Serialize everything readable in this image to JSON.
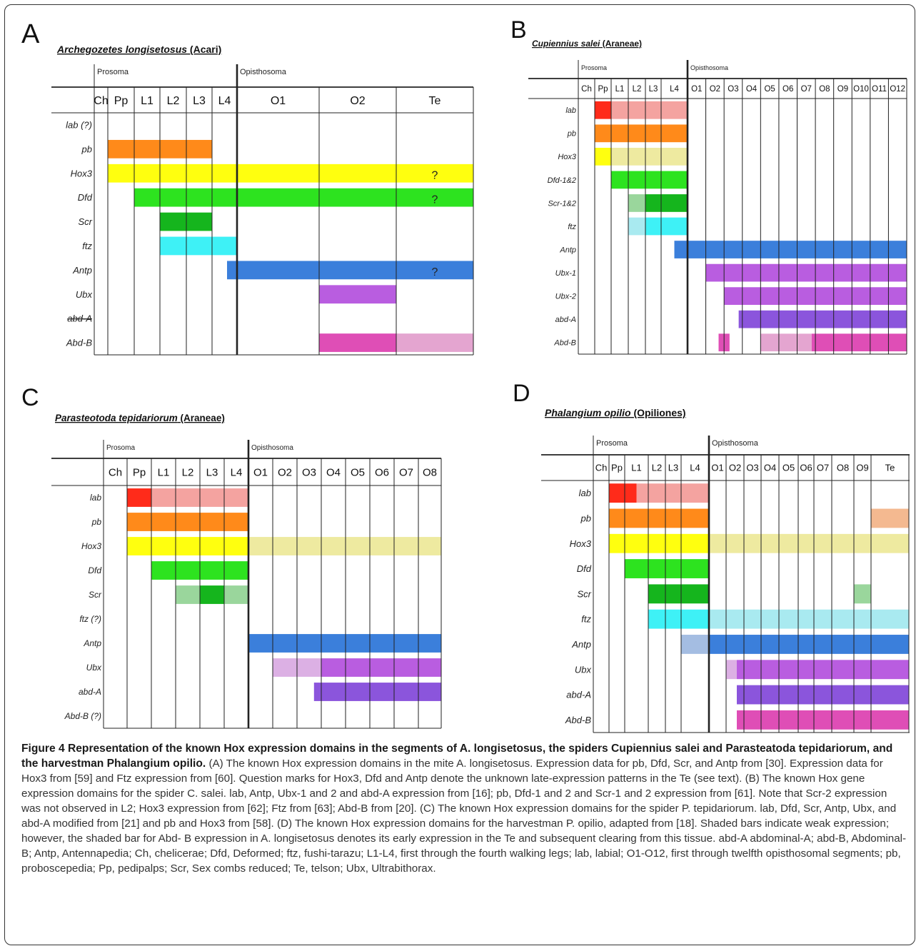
{
  "panels": [
    {
      "id": "A",
      "letter": "A",
      "species_italic": "Archegozetes longisetosus",
      "taxon": "(Acari)",
      "region_labels": [
        {
          "text": "Prosoma",
          "col": 0
        },
        {
          "text": "Opisthosoma",
          "col": 6
        }
      ],
      "segments": [
        "Ch",
        "Pp",
        "L1",
        "L2",
        "L3",
        "L4",
        "O1",
        "O2",
        "Te"
      ],
      "genes": [
        "lab (?)",
        "pb",
        "Hox3",
        "Dfd",
        "Scr",
        "ftz",
        "Antp",
        "Ubx",
        "abd-A",
        "Abd-B"
      ],
      "struck_genes": [
        "abd-A"
      ],
      "bars": [
        {
          "gene": 1,
          "start": 1.0,
          "end": 5.0,
          "color": "#ff8a1a"
        },
        {
          "gene": 2,
          "start": 1.0,
          "end": 9.0,
          "color": "#ffff0f"
        },
        {
          "gene": 3,
          "start": 2.0,
          "end": 9.0,
          "color": "#2de31f"
        },
        {
          "gene": 4,
          "start": 3.0,
          "end": 5.0,
          "color": "#15b51d"
        },
        {
          "gene": 5,
          "start": 3.0,
          "end": 6.0,
          "color": "#3ef1f6"
        },
        {
          "gene": 6,
          "start": 5.6,
          "end": 9.0,
          "color": "#3b7fdb"
        },
        {
          "gene": 7,
          "start": 7.0,
          "end": 8.0,
          "color": "#b95de0"
        },
        {
          "gene": 9,
          "start": 7.0,
          "end": 8.0,
          "color": "#df4eb6"
        },
        {
          "gene": 9,
          "start": 8.0,
          "end": 9.0,
          "color": "#e4a5d0"
        }
      ],
      "marks": [
        {
          "gene": 2,
          "text": "?"
        },
        {
          "gene": 3,
          "text": "?"
        },
        {
          "gene": 6,
          "text": "?"
        }
      ]
    },
    {
      "id": "B",
      "letter": "B",
      "species_italic": "Cupiennius salei",
      "taxon": "(Araneae)",
      "region_labels": [
        {
          "text": "Prosoma",
          "col": 0
        },
        {
          "text": "Opisthosoma",
          "col": 6
        }
      ],
      "segments": [
        "Ch",
        "Pp",
        "L1",
        "L2",
        "L3",
        "L4",
        "O1",
        "O2",
        "O3",
        "O4",
        "O5",
        "O6",
        "O7",
        "O8",
        "O9",
        "O10",
        "O11",
        "O12"
      ],
      "genes": [
        "lab",
        "pb",
        "Hox3",
        "Dfd-1&2",
        "Scr-1&2",
        "ftz",
        "Antp",
        "Ubx-1",
        "Ubx-2",
        "abd-A",
        "Abd-B"
      ],
      "struck_genes": [],
      "bars": [
        {
          "gene": 0,
          "start": 1.0,
          "end": 2.0,
          "color": "#ff2b1a"
        },
        {
          "gene": 0,
          "start": 2.0,
          "end": 6.0,
          "color": "#f4a3a0"
        },
        {
          "gene": 1,
          "start": 1.0,
          "end": 6.0,
          "color": "#ff8a1a"
        },
        {
          "gene": 2,
          "start": 1.0,
          "end": 2.0,
          "color": "#ffff0f"
        },
        {
          "gene": 2,
          "start": 2.0,
          "end": 6.0,
          "color": "#eeeaa0"
        },
        {
          "gene": 3,
          "start": 2.0,
          "end": 6.0,
          "color": "#2de31f"
        },
        {
          "gene": 4,
          "start": 3.0,
          "end": 4.0,
          "color": "#9ad69c"
        },
        {
          "gene": 4,
          "start": 4.0,
          "end": 6.0,
          "color": "#15b51d"
        },
        {
          "gene": 5,
          "start": 3.0,
          "end": 4.0,
          "color": "#a9eaf0"
        },
        {
          "gene": 5,
          "start": 4.0,
          "end": 6.0,
          "color": "#3ef1f6"
        },
        {
          "gene": 6,
          "start": 5.5,
          "end": 18.0,
          "color": "#3b7fdb"
        },
        {
          "gene": 7,
          "start": 7.0,
          "end": 18.0,
          "color": "#b95de0"
        },
        {
          "gene": 8,
          "start": 8.0,
          "end": 18.0,
          "color": "#b95de0"
        },
        {
          "gene": 9,
          "start": 8.8,
          "end": 18.0,
          "color": "#8b55dc"
        },
        {
          "gene": 10,
          "start": 7.7,
          "end": 8.3,
          "color": "#df4eb6"
        },
        {
          "gene": 10,
          "start": 10.0,
          "end": 12.8,
          "color": "#e4a5d0"
        },
        {
          "gene": 10,
          "start": 12.8,
          "end": 18.0,
          "color": "#df4eb6"
        }
      ],
      "marks": []
    },
    {
      "id": "C",
      "letter": "C",
      "species_italic": "Parasteotoda tepidariorum",
      "taxon": "(Araneae)",
      "region_labels": [
        {
          "text": "Prosoma",
          "col": 0
        },
        {
          "text": "Opisthosoma",
          "col": 6
        }
      ],
      "segments": [
        "Ch",
        "Pp",
        "L1",
        "L2",
        "L3",
        "L4",
        "O1",
        "O2",
        "O3",
        "O4",
        "O5",
        "O6",
        "O7",
        "O8"
      ],
      "genes": [
        "lab",
        "pb",
        "Hox3",
        "Dfd",
        "Scr",
        "ftz (?)",
        "Antp",
        "Ubx",
        "abd-A",
        "Abd-B (?)"
      ],
      "struck_genes": [],
      "bars": [
        {
          "gene": 0,
          "start": 1.0,
          "end": 2.0,
          "color": "#ff2b1a"
        },
        {
          "gene": 0,
          "start": 2.0,
          "end": 6.0,
          "color": "#f4a3a0"
        },
        {
          "gene": 1,
          "start": 1.0,
          "end": 6.0,
          "color": "#ff8a1a"
        },
        {
          "gene": 2,
          "start": 1.0,
          "end": 6.0,
          "color": "#ffff0f"
        },
        {
          "gene": 2,
          "start": 6.0,
          "end": 14.0,
          "color": "#eeeaa0"
        },
        {
          "gene": 3,
          "start": 2.0,
          "end": 6.0,
          "color": "#2de31f"
        },
        {
          "gene": 4,
          "start": 3.0,
          "end": 4.0,
          "color": "#9ad69c"
        },
        {
          "gene": 4,
          "start": 4.0,
          "end": 5.0,
          "color": "#15b51d"
        },
        {
          "gene": 4,
          "start": 5.0,
          "end": 6.0,
          "color": "#9ad69c"
        },
        {
          "gene": 6,
          "start": 6.0,
          "end": 14.0,
          "color": "#3b7fdb"
        },
        {
          "gene": 7,
          "start": 7.0,
          "end": 9.0,
          "color": "#dcb0e4"
        },
        {
          "gene": 7,
          "start": 9.0,
          "end": 14.0,
          "color": "#b95de0"
        },
        {
          "gene": 8,
          "start": 8.7,
          "end": 14.0,
          "color": "#8b55dc"
        }
      ],
      "marks": []
    },
    {
      "id": "D",
      "letter": "D",
      "species_italic": "Phalangium opilio",
      "taxon": "(Opiliones)",
      "region_labels": [
        {
          "text": "Prosoma",
          "col": 0
        },
        {
          "text": "Opisthosoma",
          "col": 6
        }
      ],
      "segments": [
        "Ch",
        "Pp",
        "L1",
        "L2",
        "L3",
        "L4",
        "O1",
        "O2",
        "O3",
        "O4",
        "O5",
        "O6",
        "O7",
        "O8",
        "O9",
        "Te"
      ],
      "genes": [
        "lab",
        "pb",
        "Hox3",
        "Dfd",
        "Scr",
        "ftz",
        "Antp",
        "Ubx",
        "abd-A",
        "Abd-B"
      ],
      "struck_genes": [],
      "bars": [
        {
          "gene": 0,
          "start": 1.0,
          "end": 2.5,
          "color": "#ff2b1a"
        },
        {
          "gene": 0,
          "start": 2.5,
          "end": 6.0,
          "color": "#f4a3a0"
        },
        {
          "gene": 1,
          "start": 1.0,
          "end": 6.0,
          "color": "#ff8a1a"
        },
        {
          "gene": 1,
          "start": 15.0,
          "end": 16.0,
          "color": "#f4b990"
        },
        {
          "gene": 2,
          "start": 1.0,
          "end": 6.0,
          "color": "#ffff0f"
        },
        {
          "gene": 2,
          "start": 6.0,
          "end": 16.0,
          "color": "#eeeaa0"
        },
        {
          "gene": 3,
          "start": 2.0,
          "end": 6.0,
          "color": "#2de31f"
        },
        {
          "gene": 4,
          "start": 3.0,
          "end": 6.0,
          "color": "#15b51d"
        },
        {
          "gene": 4,
          "start": 14.0,
          "end": 15.0,
          "color": "#9ad69c"
        },
        {
          "gene": 5,
          "start": 3.0,
          "end": 6.0,
          "color": "#3ef1f6"
        },
        {
          "gene": 5,
          "start": 6.0,
          "end": 16.0,
          "color": "#a9eaf0"
        },
        {
          "gene": 6,
          "start": 5.0,
          "end": 6.0,
          "color": "#a4bde2"
        },
        {
          "gene": 6,
          "start": 6.0,
          "end": 16.0,
          "color": "#3b7fdb"
        },
        {
          "gene": 7,
          "start": 7.0,
          "end": 7.6,
          "color": "#dcb0e4"
        },
        {
          "gene": 7,
          "start": 7.6,
          "end": 16.0,
          "color": "#b95de0"
        },
        {
          "gene": 8,
          "start": 7.6,
          "end": 16.0,
          "color": "#8b55dc"
        },
        {
          "gene": 9,
          "start": 7.6,
          "end": 16.0,
          "color": "#df4eb6"
        }
      ],
      "marks": []
    }
  ],
  "caption": {
    "title": "Figure 4 Representation of the known Hox expression domains in the segments of A. longisetosus, the spiders Cupiennius salei and Parasteatoda tepidariorum, and the harvestman Phalangium opilio.",
    "body": "(A) The known Hox expression domains in the mite A. longisetosus. Expression data for pb, Dfd, Scr, and Antp from [30]. Expression data for Hox3 from [59] and Ftz expression from [60]. Question marks for Hox3, Dfd and Antp denote the unknown late-expression patterns in the Te (see text). (B) The known Hox gene expression domains for the spider C. salei. lab, Antp, Ubx-1 and 2 and abd-A expression from [16]; pb, Dfd-1 and 2 and Scr-1 and 2 expression from [61]. Note that Scr-2 expression was not observed in L2; Hox3 expression from [62]; Ftz from [63]; Abd-B from [20]. (C) The known Hox expression domains for the spider P. tepidariorum. lab, Dfd, Scr, Antp, Ubx, and abd-A modified from [21] and pb and Hox3 from [58]. (D) The known Hox expression domains for the harvestman P. opilio, adapted from [18]. Shaded bars indicate weak expression; however, the shaded bar for Abd- B expression in A. longisetosus denotes its early expression in the Te and subsequent clearing from this tissue. abd-A abdominal-A; abd-B, Abdominal-B; Antp, Antennapedia; Ch, chelicerae; Dfd, Deformed; ftz, fushi-tarazu; L1-L4, first through the fourth walking legs; lab, labial; O1-O12, first through twelfth opisthosomal segments; pb, proboscepedia; Pp, pedipalps; Scr, Sex combs reduced; Te, telson; Ubx, Ultrabithorax."
  }
}
